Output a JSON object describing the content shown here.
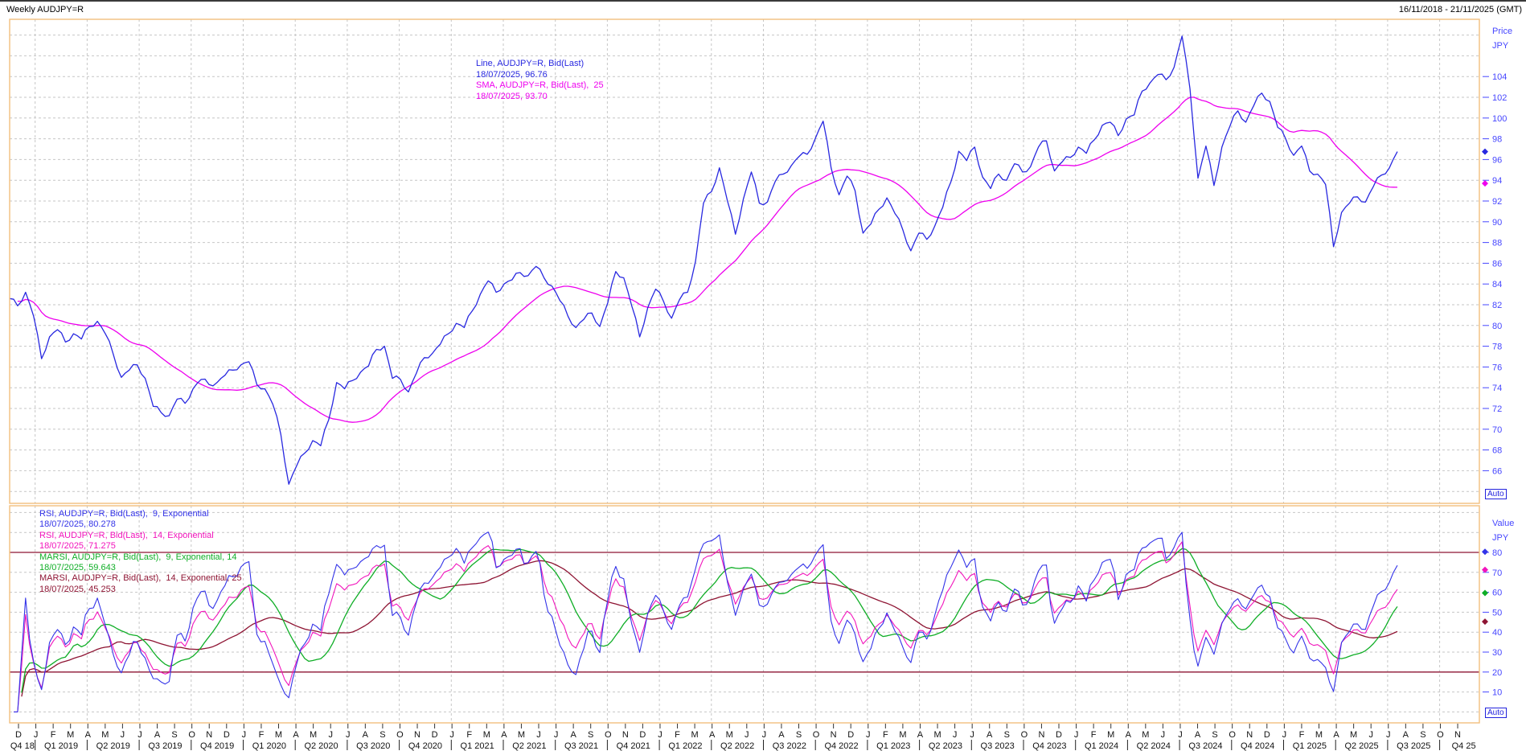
{
  "header": {
    "title": "Weekly AUDJPY=R",
    "date_range": "16/11/2018 - 21/11/2025 (GMT)"
  },
  "price_pane": {
    "auto_label": "Auto",
    "axis_title": [
      "Price",
      "JPY"
    ],
    "legend": [
      {
        "text": "Line, AUDJPY=R, Bid(Last)",
        "color_key": "price_line"
      },
      {
        "text": "18/07/2025, 96.76",
        "color_key": "price_line"
      },
      {
        "text": "SMA, AUDJPY=R, Bid(Last),  25",
        "color_key": "sma_line"
      },
      {
        "text": "18/07/2025, 93.70",
        "color_key": "sma_line"
      }
    ],
    "markers": [
      {
        "value": 96.76,
        "color_key": "price_line"
      },
      {
        "value": 93.7,
        "color_key": "sma_line"
      }
    ]
  },
  "rsi_pane": {
    "auto_label": "Auto",
    "axis_title": [
      "Value",
      "JPY"
    ],
    "legend": [
      {
        "text": "RSI, AUDJPY=R, Bid(Last),  9, Exponential",
        "color_key": "rsi9"
      },
      {
        "text": "18/07/2025, 80.278",
        "color_key": "rsi9"
      },
      {
        "text": "RSI, AUDJPY=R, Bid(Last),  14, Exponential",
        "color_key": "rsi14"
      },
      {
        "text": "18/07/2025, 71.275",
        "color_key": "rsi14"
      },
      {
        "text": "MARSI, AUDJPY=R, Bid(Last),  9, Exponential, 14",
        "color_key": "marsi9"
      },
      {
        "text": "18/07/2025, 59.643",
        "color_key": "marsi9"
      },
      {
        "text": "MARSI, AUDJPY=R, Bid(Last),  14, Exponential, 25",
        "color_key": "marsi14"
      },
      {
        "text": "18/07/2025, 45.253",
        "color_key": "marsi14"
      }
    ],
    "markers": [
      {
        "value": 80.278,
        "color_key": "rsi9"
      },
      {
        "value": 71.275,
        "color_key": "rsi14"
      },
      {
        "value": 59.643,
        "color_key": "marsi9"
      },
      {
        "value": 45.253,
        "color_key": "marsi14"
      }
    ]
  },
  "colors": {
    "price_line": "#2828e0",
    "sma_line": "#ee00ee",
    "rsi9": "#3333e8",
    "rsi14": "#f214bc",
    "marsi9": "#0fae26",
    "marsi14": "#8e1433",
    "levels": "#8e1433",
    "axis_labels": "#4646ff",
    "grid": "#c6c6c6",
    "pane_border": "#f2bf7e",
    "text": "#000000"
  },
  "chart_data": {
    "type": "line",
    "symbol": "AUDJPY=R",
    "interval": "Weekly",
    "title": "Weekly AUDJPY=R",
    "x_start": "2018-11-16",
    "x_step_days": 14,
    "x_axis_end": "2025-11-21",
    "last_date": "18/07/2025",
    "series": [
      {
        "name": "AUDJPY=R Bid(Last)",
        "last": 96.76,
        "values": [
          82.6,
          81.9,
          83.2,
          80.9,
          76.8,
          78.9,
          79.6,
          78.4,
          79.2,
          78.7,
          79.9,
          80.4,
          79.2,
          77.2,
          75.0,
          75.7,
          76.2,
          74.9,
          72.2,
          71.6,
          71.3,
          72.9,
          72.5,
          73.9,
          74.8,
          74.3,
          74.5,
          75.2,
          75.7,
          76.2,
          76.5,
          74.3,
          73.9,
          72.4,
          69.5,
          64.7,
          66.5,
          67.7,
          68.9,
          68.4,
          70.9,
          74.5,
          73.9,
          74.7,
          75.5,
          76.1,
          77.7,
          78.0,
          74.9,
          74.8,
          73.6,
          75.4,
          76.9,
          77.3,
          78.2,
          79.2,
          80.2,
          79.8,
          81.4,
          83.0,
          84.3,
          83.2,
          84.0,
          84.4,
          85.1,
          84.8,
          85.7,
          84.6,
          83.8,
          82.4,
          80.9,
          79.8,
          80.6,
          81.2,
          79.9,
          82.2,
          85.2,
          84.6,
          81.9,
          78.9,
          81.7,
          83.5,
          82.3,
          80.7,
          82.5,
          83.2,
          86.2,
          91.8,
          92.9,
          95.2,
          92.0,
          88.8,
          92.2,
          94.8,
          91.8,
          91.9,
          93.9,
          94.6,
          95.4,
          96.3,
          96.5,
          98.0,
          99.7,
          95.2,
          92.6,
          94.4,
          93.0,
          88.9,
          89.8,
          91.2,
          92.3,
          90.8,
          89.2,
          87.2,
          88.9,
          88.3,
          89.6,
          91.4,
          93.8,
          96.8,
          95.9,
          97.2,
          94.3,
          93.2,
          94.6,
          94.0,
          95.6,
          94.8,
          95.3,
          97.2,
          97.8,
          94.9,
          95.8,
          96.2,
          97.2,
          96.6,
          97.9,
          99.3,
          99.6,
          98.3,
          99.9,
          100.3,
          102.6,
          103.4,
          104.2,
          103.7,
          104.9,
          107.9,
          102.8,
          94.2,
          97.3,
          93.5,
          97.2,
          99.2,
          100.7,
          99.6,
          101.2,
          102.4,
          101.6,
          99.1,
          98.0,
          96.4,
          97.3,
          94.9,
          94.6,
          93.6,
          87.6,
          90.9,
          91.8,
          92.4,
          91.9,
          93.4,
          94.5,
          95.2,
          96.76
        ]
      }
    ],
    "overlays": [
      {
        "name": "SMA 25",
        "period": 25,
        "last": 93.7
      }
    ],
    "lower_indicators": [
      {
        "name": "RSI 9 Exponential",
        "last": 80.278
      },
      {
        "name": "RSI 14 Exponential",
        "last": 71.275
      },
      {
        "name": "MARSI 9 Exponential 14",
        "last": 59.643
      },
      {
        "name": "MARSI 14 Exponential 25",
        "last": 45.253
      }
    ],
    "price_axis": {
      "ticks": [
        104,
        102,
        100,
        98,
        96,
        94,
        92,
        90,
        88,
        86,
        84,
        82,
        80,
        78,
        76,
        74,
        72,
        70,
        68,
        66
      ],
      "ylim": [
        62.9,
        109.5
      ]
    },
    "rsi_axis": {
      "ticks": [
        80,
        70,
        60,
        50,
        40,
        30,
        20,
        10
      ],
      "levels": [
        80,
        20
      ],
      "ylim": [
        0,
        108
      ]
    },
    "x_axis": {
      "months_pattern": [
        "D",
        "J",
        "F",
        "M",
        "A",
        "M",
        "J",
        "J",
        "A",
        "S",
        "O",
        "N"
      ],
      "months_repeat": 7,
      "quarters": [
        "Q4 18",
        "Q1 2019",
        "Q2 2019",
        "Q3 2019",
        "Q4 2019",
        "Q1 2020",
        "Q2 2020",
        "Q3 2020",
        "Q4 2020",
        "Q1 2021",
        "Q2 2021",
        "Q3 2021",
        "Q4 2021",
        "Q1 2022",
        "Q2 2022",
        "Q3 2022",
        "Q4 2022",
        "Q1 2023",
        "Q2 2023",
        "Q3 2023",
        "Q4 2023",
        "Q1 2024",
        "Q2 2024",
        "Q3 2024",
        "Q4 2024",
        "Q1 2025",
        "Q2 2025",
        "Q3 2025",
        "Q4 25"
      ]
    },
    "grid": true,
    "legend_position": "inside"
  }
}
